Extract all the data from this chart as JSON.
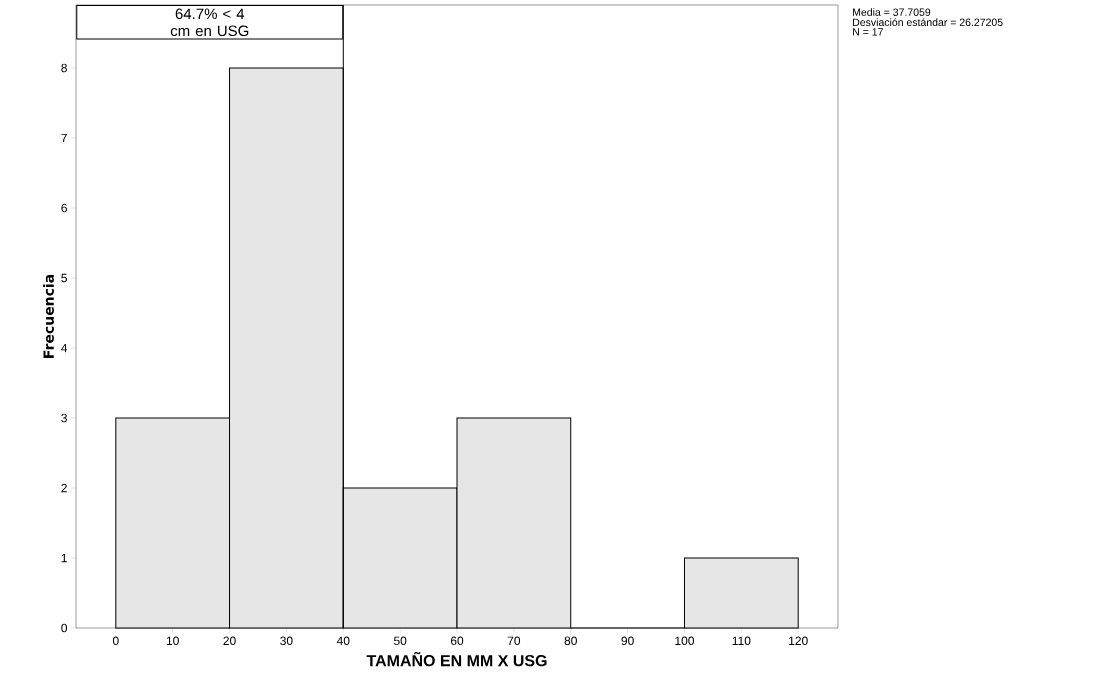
{
  "chart_data": {
    "type": "histogram",
    "xlabel": "TAMAÑO EN MM X USG",
    "ylabel": "Frecuencia",
    "bins": [
      0,
      20,
      40,
      60,
      80,
      100,
      120
    ],
    "values": [
      3,
      8,
      2,
      3,
      0,
      1
    ],
    "color": "#e6e6e6",
    "xlim": [
      -7,
      127
    ],
    "ylim": [
      0,
      8.9
    ],
    "xticks": [
      0,
      10,
      20,
      30,
      40,
      50,
      60,
      70,
      80,
      90,
      100,
      110,
      120
    ],
    "yticks": [
      0,
      1,
      2,
      3,
      4,
      5,
      6,
      7,
      8
    ],
    "ref_lines": [
      {
        "axis": "x",
        "value": 40,
        "label": "64.7% < 4 cm en USG",
        "color": "#000000"
      }
    ],
    "annotations": [
      "Media = 37.7059",
      "Desviación estándar = 26.27205",
      "N = 17"
    ]
  }
}
